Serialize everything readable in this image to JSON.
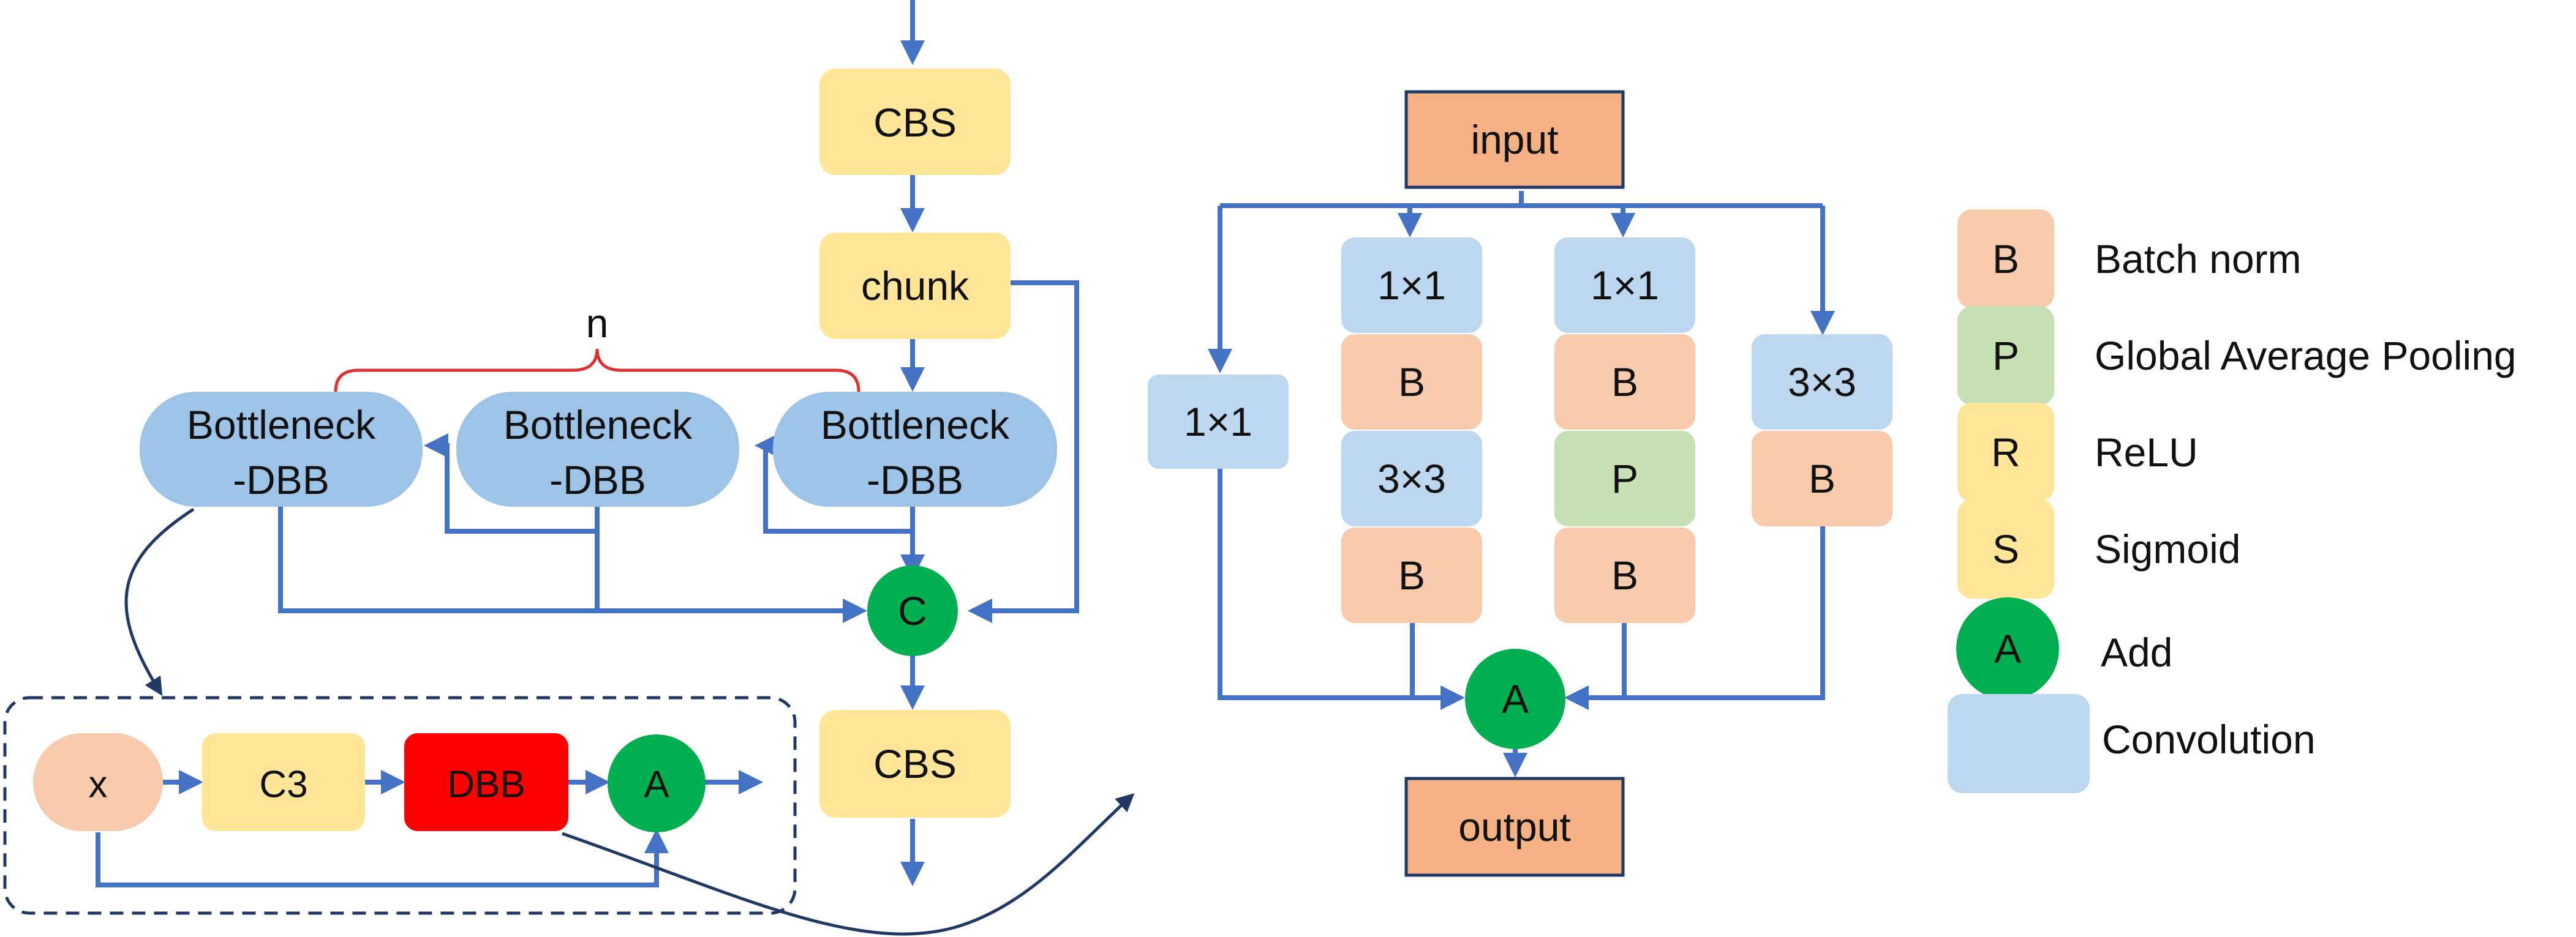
{
  "left_module": {
    "cbs_top": "CBS",
    "chunk": "chunk",
    "n_label": "n",
    "bottleneck_line1": "Bottleneck",
    "bottleneck_line2": "-DBB",
    "concat": "C",
    "cbs_bottom": "CBS"
  },
  "inset": {
    "x": "x",
    "c3": "C3",
    "dbb": "DBB",
    "add": "A"
  },
  "dbb_block": {
    "input": "input",
    "output": "output",
    "add": "A",
    "branch1": [
      "1×1"
    ],
    "branch2": [
      "1×1",
      "B",
      "3×3",
      "B"
    ],
    "branch3": [
      "1×1",
      "B",
      "P",
      "B"
    ],
    "branch4": [
      "3×3",
      "B"
    ]
  },
  "legend": [
    {
      "key": "B",
      "label": "Batch norm",
      "color": "#f7cbac"
    },
    {
      "key": "P",
      "label": "Global Average Pooling",
      "color": "#c6e0b4"
    },
    {
      "key": "R",
      "label": "ReLU",
      "color": "#ffe699"
    },
    {
      "key": "S",
      "label": "Sigmoid",
      "color": "#ffe699"
    },
    {
      "key": "A",
      "label": "Add",
      "color": "#00b050"
    },
    {
      "key": "",
      "label": "Convolution",
      "color": "#bdd7ee"
    }
  ],
  "colors": {
    "arrow": "#4472c4",
    "curve": "#1f3864",
    "yellow": "#ffe699",
    "blue_conv": "#bdd7ee",
    "bottleneck": "#9dc3e6",
    "peach": "#f7cbac",
    "green": "#00b050",
    "red": "#ff0000",
    "orange_io": "#f4b183",
    "brace": "#e03030"
  }
}
